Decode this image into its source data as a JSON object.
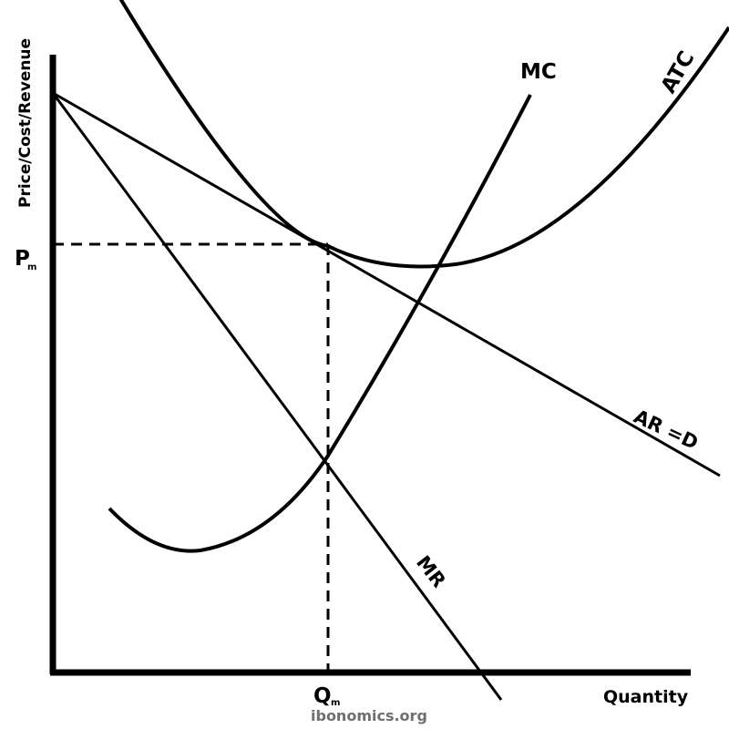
{
  "axes": {
    "y_label": "Price/Cost/Revenue",
    "x_label": "Quantity"
  },
  "markers": {
    "price_main": "P",
    "price_sub": "m",
    "quantity_main": "Q",
    "quantity_sub": "m"
  },
  "curves": {
    "mc": "MC",
    "atc": "ATC",
    "ar": "AR =D",
    "mr": "MR"
  },
  "watermark": "ibonomics.org"
}
